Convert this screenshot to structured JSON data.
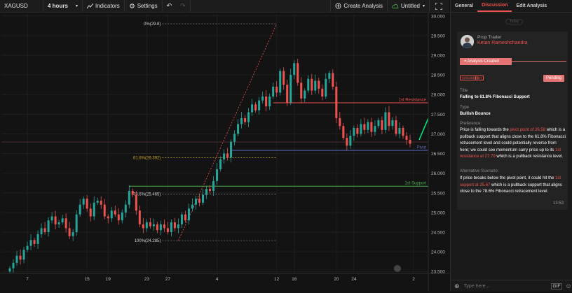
{
  "toolbar": {
    "symbol": "XAGUSD",
    "interval": "4 hours",
    "indicators_label": "Indicators",
    "settings_label": "Settings",
    "create_analysis_label": "Create Analysis",
    "untitled_label": "Untitled"
  },
  "sidebar": {
    "tabs": [
      {
        "label": "General"
      },
      {
        "label": "Discussion"
      },
      {
        "label": "Edit Analysis"
      }
    ],
    "today_label": "Today",
    "author_role": "Prop Trader",
    "author_name": "Ketan Rameshchandra",
    "created_label": "Analysis Created",
    "symbol_tag": "XAGUSD",
    "interval_tag": "4H",
    "status": "Pending",
    "title_label": "Title",
    "title_value": "Falling to 61.8% Fibonacci Support",
    "type_label": "Type",
    "type_value": "Bullish Bounce",
    "preference_label": "Preference:",
    "preference": {
      "p1": "Price is falling towards the",
      "h1": "pivot point of 26.58",
      "p2": "which is a pullback support that aligns close to the 61.8% Fibonacci retracement level and could potentially reverse from here; we could see momentum carry price up to its",
      "h2": "1st resistance at 27.79",
      "p3": "which is a pullback resistance level."
    },
    "alt_label": "Alternative Scenario:",
    "alt": {
      "p1": "If price breaks below the pivot point, it could hit the",
      "h1": "1st support at 25.67",
      "p2": "which is a pullback support that aligns close to the 78.6% Fibonacci retracement level."
    },
    "time": "13:53",
    "input_placeholder": "Type here...",
    "gif_label": "GIF"
  },
  "colors": {
    "accent": "#ef5350",
    "bull": "#26a69a",
    "bear": "#ef5350",
    "support": "#4caf50",
    "pivot": "#5c6bc0",
    "resistance": "#ef5350"
  },
  "chart_data": {
    "type": "candlestick",
    "y_ticks": [
      "30.000",
      "29.500",
      "29.000",
      "28.500",
      "28.000",
      "27.500",
      "27.000",
      "26.500",
      "26.000",
      "25.500",
      "25.000",
      "24.500",
      "24.000",
      "23.500"
    ],
    "ylim": [
      23.45,
      30.05
    ],
    "x_ticks": [
      {
        "label": "7",
        "bar": 5
      },
      {
        "label": "15",
        "bar": 22
      },
      {
        "label": "19",
        "bar": 28
      },
      {
        "label": "23",
        "bar": 39
      },
      {
        "label": "27",
        "bar": 45
      },
      {
        "label": "4",
        "bar": 59
      },
      {
        "label": "12",
        "bar": 76
      },
      {
        "label": "16",
        "bar": 81
      },
      {
        "label": "20",
        "bar": 93
      },
      {
        "label": "24",
        "bar": 98
      },
      {
        "label": "2",
        "bar": 115
      }
    ],
    "closes": [
      23.58,
      23.72,
      23.9,
      23.8,
      24.05,
      24.15,
      24.3,
      24.2,
      24.45,
      24.6,
      24.5,
      24.8,
      24.9,
      24.7,
      24.75,
      24.85,
      24.6,
      24.4,
      24.5,
      24.95,
      25.2,
      25.35,
      25.1,
      24.9,
      25.25,
      25.3,
      25.2,
      24.9,
      24.85,
      25.05,
      24.95,
      24.8,
      25.0,
      25.2,
      25.55,
      25.45,
      25.05,
      24.7,
      24.6,
      24.75,
      24.65,
      24.7,
      24.55,
      24.7,
      24.6,
      24.5,
      24.75,
      24.6,
      24.7,
      24.95,
      24.8,
      25.1,
      25.2,
      25.35,
      25.25,
      25.45,
      25.6,
      25.55,
      25.8,
      26.1,
      26.35,
      26.5,
      26.4,
      26.8,
      27.0,
      27.25,
      27.4,
      27.3,
      27.55,
      27.75,
      27.6,
      27.85,
      27.95,
      27.7,
      27.95,
      28.2,
      28.05,
      28.6,
      28.25,
      27.8,
      28.5,
      28.8,
      28.3,
      27.9,
      28.1,
      28.4,
      28.1,
      28.35,
      28.15,
      27.95,
      28.4,
      28.55,
      28.2,
      27.4,
      27.2,
      26.9,
      26.7,
      26.95,
      27.15,
      27.0,
      27.25,
      27.1,
      27.3,
      27.05,
      27.2,
      27.35,
      27.1,
      27.55,
      27.2,
      27.35,
      27.0,
      27.15,
      26.95,
      26.85,
      26.75
    ],
    "fib_levels": [
      {
        "label": "0%(29.8)",
        "value": 29.8
      },
      {
        "label": "61.8%(26.392)",
        "value": 26.392
      },
      {
        "label": "78.6%(25.465)",
        "value": 25.465
      },
      {
        "label": "100%(24.285)",
        "value": 24.285
      }
    ],
    "lines": [
      {
        "name": "1st Resistance",
        "value": 27.79,
        "tag": "27.79"
      },
      {
        "name": "Pivot",
        "value": 26.58,
        "tag": "26.583"
      },
      {
        "name": "1st Support",
        "value": 25.67,
        "tag": "25.673"
      }
    ],
    "current_price_tag": "26.793",
    "current_price": 26.793
  }
}
